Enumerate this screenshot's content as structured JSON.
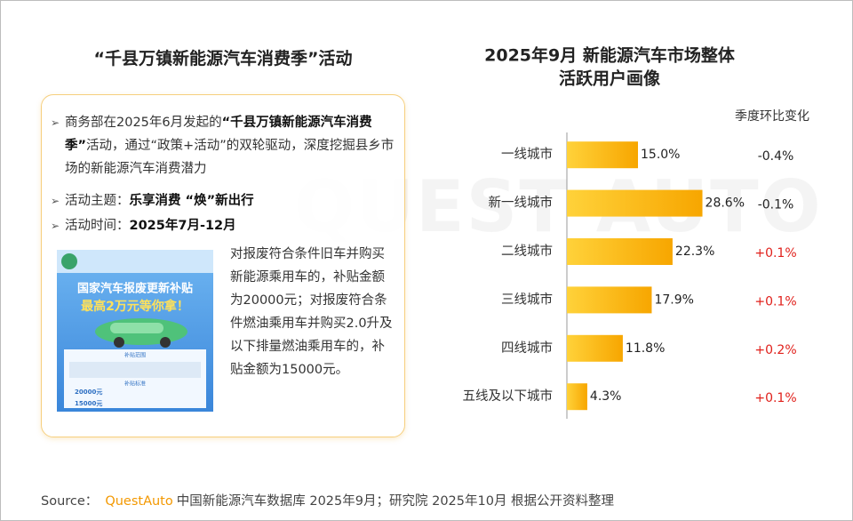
{
  "left_panel": {
    "title": "“千县万镇新能源汽车消费季”活动",
    "bullets": [
      {
        "prefix": "商务部在2025年6月发起的",
        "bold": "“千县万镇新能源汽车消费季”",
        "suffix": "活动，通过“政策+活动”的双轮驱动，深度挖掘县乡市场的新能源汽车消费潜力"
      },
      {
        "prefix": "活动主题：",
        "bold": "乐享消费 “焕”新出行"
      },
      {
        "prefix": "活动时间：",
        "bold": "2025年7月-12月"
      }
    ],
    "poster": {
      "headline_1": "国家汽车报废更新补贴",
      "headline_2": "最高2万元等你拿！",
      "section_1": "补贴范围",
      "section_2": "补贴标准",
      "amounts": [
        "20000元",
        "15000元"
      ]
    },
    "description": "对报废符合条件旧车并购买新能源乘用车的，补贴金额为20000元；对报废符合条件燃油乘用车并购买2.0升及以下排量燃油乘用车的，补贴金额为15000元。"
  },
  "chart_data": {
    "type": "bar",
    "orientation": "horizontal",
    "title": [
      "2025年9月 新能源汽车市场整体",
      "活跃用户画像"
    ],
    "categories": [
      "一线城市",
      "新一线城市",
      "二线城市",
      "三线城市",
      "四线城市",
      "五线及以下城市"
    ],
    "values": [
      15.0,
      28.6,
      22.3,
      17.9,
      11.8,
      4.3
    ],
    "value_labels": [
      "15.0%",
      "28.6%",
      "22.3%",
      "17.9%",
      "11.8%",
      "4.3%"
    ],
    "color": [
      "#ffd23a",
      "#f7a600"
    ],
    "xlim": [
      0,
      30
    ],
    "change_title": "季度环比变化",
    "changes": {
      "values": [
        -0.4,
        -0.1,
        0.1,
        0.1,
        0.2,
        0.1
      ],
      "value_labels": [
        "-0.4%",
        "-0.1%",
        "+0.1%",
        "+0.1%",
        "+0.2%",
        "+0.1%"
      ],
      "positive_color": "#e0201b",
      "negative_color": "#222222"
    }
  },
  "watermark": "QUEST AUTO",
  "footer": {
    "label": "Source：",
    "brand": "QuestAuto",
    "text": "中国新能源汽车数据库 2025年9月；研究院 2025年10月 根据公开资料整理"
  }
}
